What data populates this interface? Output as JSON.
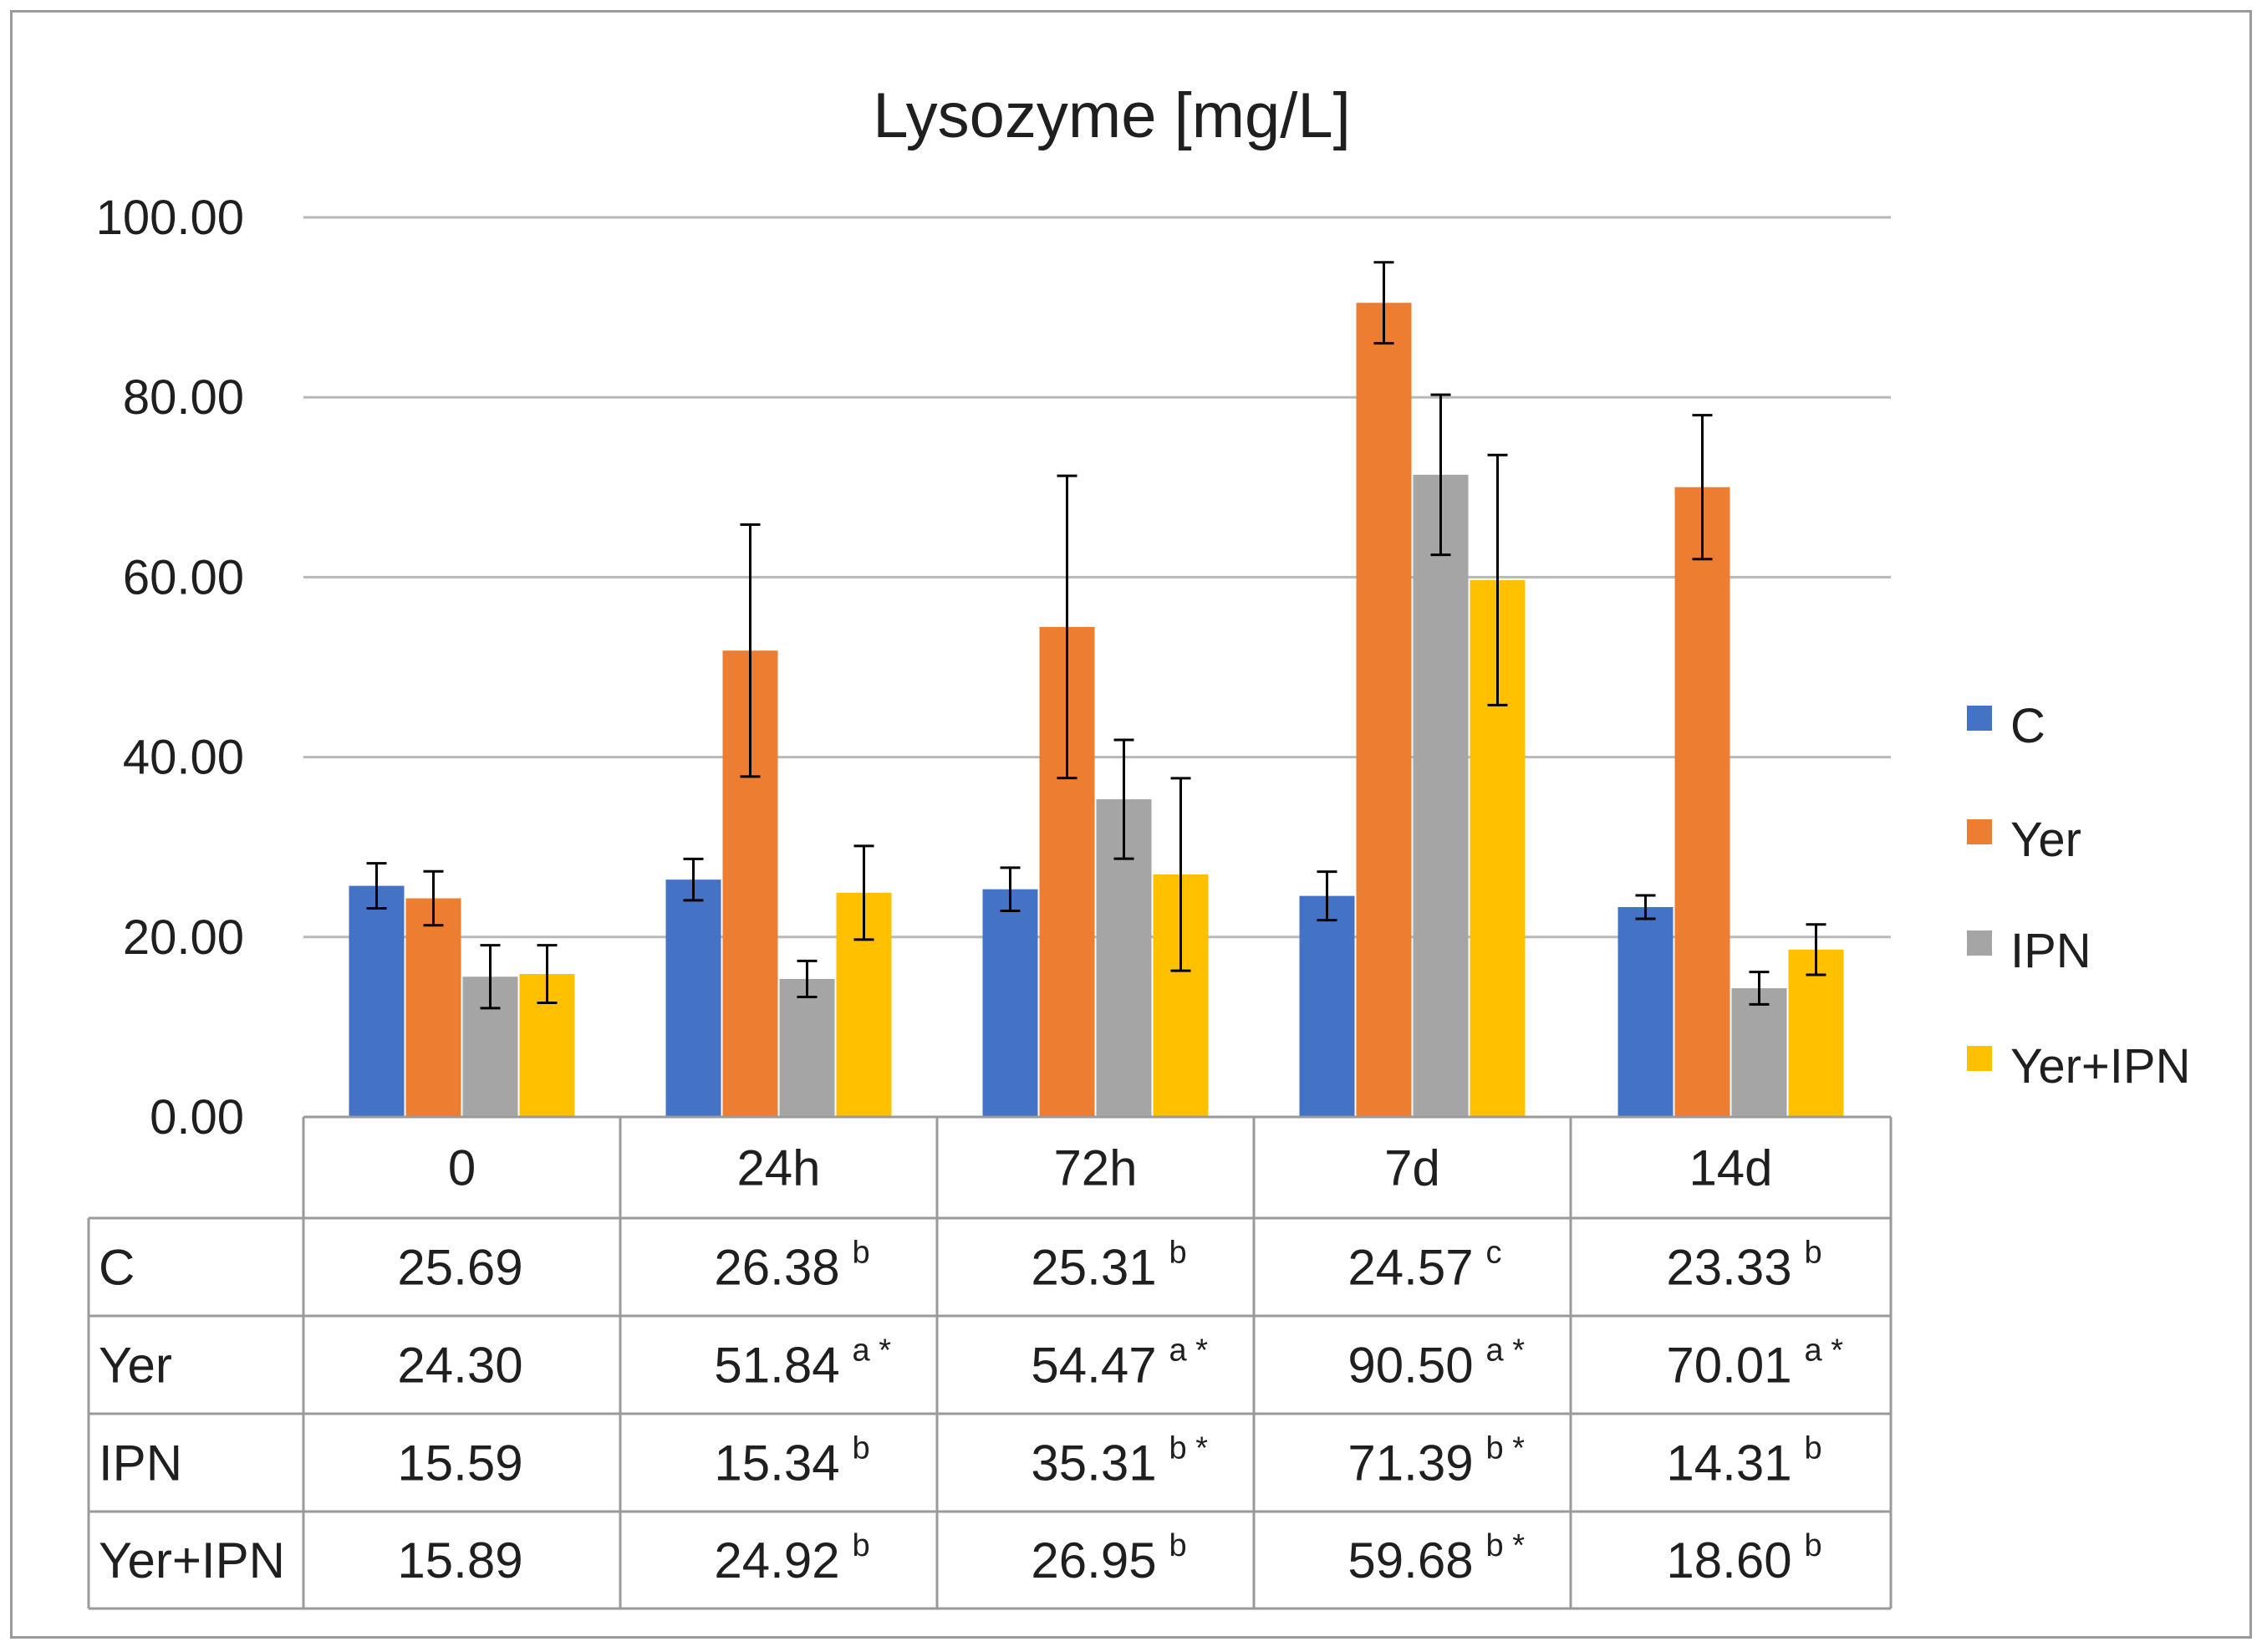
{
  "chart_data": {
    "type": "bar",
    "title": "Lysozyme [mg/L]",
    "xlabel": "",
    "ylabel": "",
    "ylim": [
      0,
      100
    ],
    "y_ticks": [
      "0.00",
      "20.00",
      "40.00",
      "60.00",
      "80.00",
      "100.00"
    ],
    "grid": true,
    "legend_position": "right",
    "categories": [
      "0",
      "24h",
      "72h",
      "7d",
      "14d"
    ],
    "series": [
      {
        "name": "C",
        "color": "#4472C4",
        "values": [
          25.69,
          26.38,
          25.31,
          24.57,
          23.33
        ],
        "errors": [
          2.5,
          2.3,
          2.4,
          2.7,
          1.3
        ],
        "labels": [
          "25.69",
          "26.38",
          "25.31",
          "24.57",
          "23.33"
        ],
        "sup": [
          "",
          "b",
          "b",
          "c",
          "b"
        ]
      },
      {
        "name": "Yer",
        "color": "#ED7D31",
        "values": [
          24.3,
          51.84,
          54.47,
          90.5,
          70.01
        ],
        "errors": [
          3.0,
          14.0,
          16.8,
          4.5,
          8.0
        ],
        "labels": [
          "24.30",
          "51.84",
          "54.47",
          "90.50",
          "70.01"
        ],
        "sup": [
          "",
          "a*",
          "a*",
          "a*",
          "a*"
        ]
      },
      {
        "name": "IPN",
        "color": "#A5A5A5",
        "values": [
          15.59,
          15.34,
          35.31,
          71.39,
          14.31
        ],
        "errors": [
          3.5,
          2.0,
          6.6,
          8.9,
          1.8
        ],
        "labels": [
          "15.59",
          "15.34",
          "35.31",
          "71.39",
          "14.31"
        ],
        "sup": [
          "",
          "b",
          "b*",
          "b*",
          "b"
        ]
      },
      {
        "name": "Yer+IPN",
        "color": "#FFC000",
        "values": [
          15.89,
          24.92,
          26.95,
          59.68,
          18.6
        ],
        "errors": [
          3.2,
          5.2,
          10.7,
          13.9,
          2.8
        ],
        "labels": [
          "15.89",
          "24.92",
          "26.95",
          "59.68",
          "18.60"
        ],
        "sup": [
          "",
          "b",
          "b",
          "b*",
          "b"
        ]
      }
    ]
  }
}
